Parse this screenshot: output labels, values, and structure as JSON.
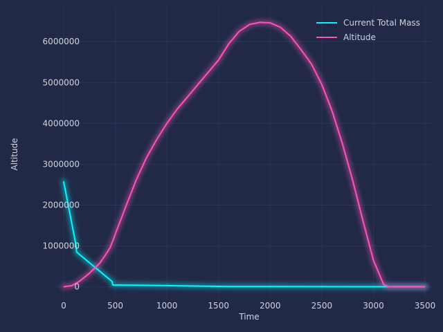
{
  "chart_data": {
    "type": "line",
    "title": "",
    "xlabel": "Time",
    "ylabel": "Altitude",
    "xlim": [
      -80,
      3580
    ],
    "ylim": [
      -260000,
      6850000
    ],
    "xticks": [
      0,
      500,
      1000,
      1500,
      2000,
      2500,
      3000,
      3500
    ],
    "yticks": [
      0,
      1000000,
      2000000,
      3000000,
      4000000,
      5000000,
      6000000
    ],
    "grid": true,
    "legend_position": "top-right",
    "series": [
      {
        "name": "Current Total Mass",
        "color": "#08F7FE",
        "x": [
          0,
          120,
          125,
          470,
          475,
          480,
          1000,
          1600,
          2000,
          3000,
          3500
        ],
        "y": [
          2580000,
          1020000,
          850000,
          130000,
          60000,
          45000,
          30000,
          8000,
          5000,
          3000,
          3000
        ]
      },
      {
        "name": "Altitude",
        "color": "#FE53BB",
        "x": [
          0,
          80,
          150,
          250,
          350,
          400,
          450,
          480,
          520,
          600,
          700,
          800,
          900,
          1000,
          1100,
          1200,
          1300,
          1400,
          1500,
          1600,
          1700,
          1800,
          1900,
          2000,
          2100,
          2200,
          2300,
          2400,
          2500,
          2600,
          2700,
          2800,
          2900,
          3000,
          3100,
          3150,
          3200,
          3500
        ],
        "y": [
          0,
          30000,
          130000,
          330000,
          580000,
          760000,
          960000,
          1150000,
          1420000,
          1950000,
          2600000,
          3150000,
          3600000,
          4000000,
          4350000,
          4650000,
          4950000,
          5250000,
          5550000,
          5950000,
          6250000,
          6420000,
          6470000,
          6460000,
          6350000,
          6130000,
          5800000,
          5450000,
          4950000,
          4300000,
          3500000,
          2600000,
          1600000,
          650000,
          50000,
          0,
          0,
          0
        ]
      }
    ]
  }
}
